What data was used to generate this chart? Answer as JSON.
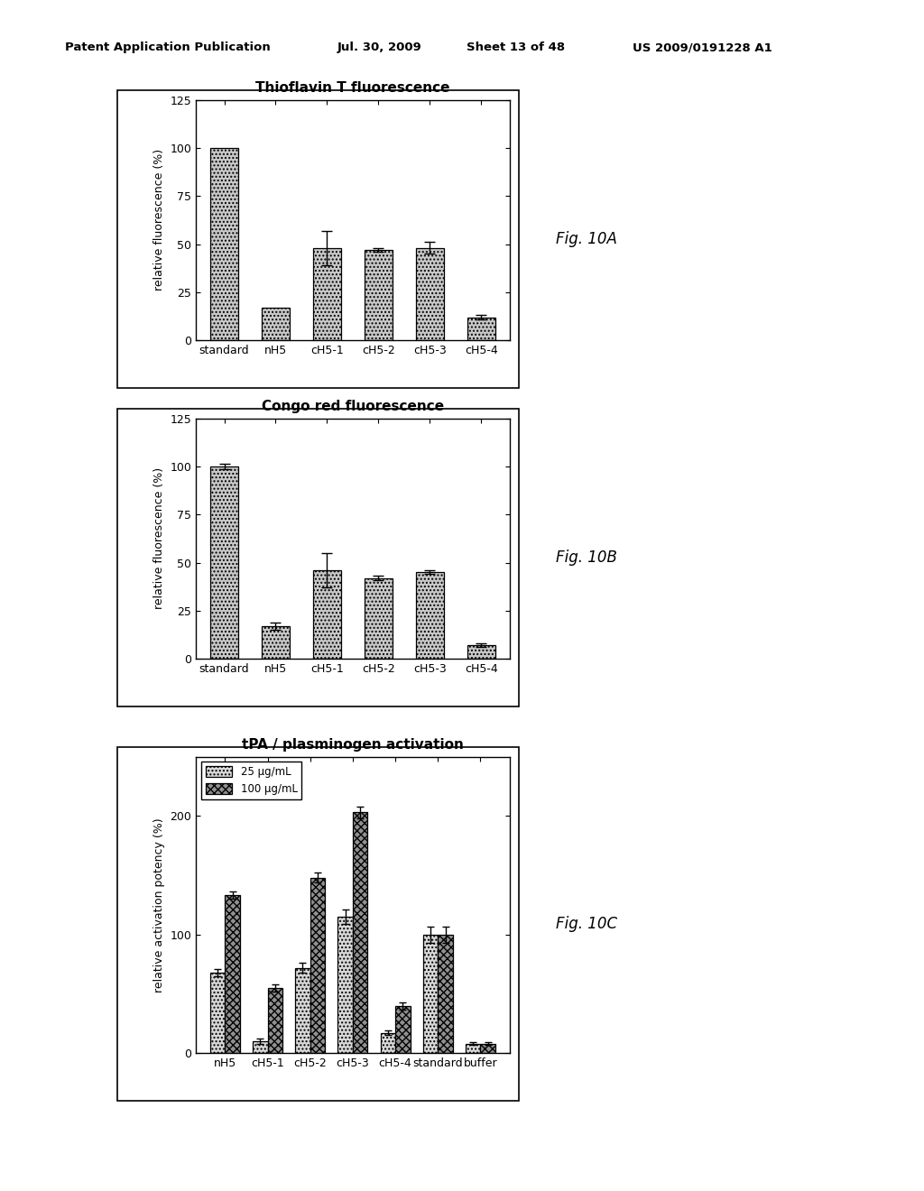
{
  "chartA": {
    "title": "Thioflavin T fluorescence",
    "categories": [
      "standard",
      "nH5",
      "cH5-1",
      "cH5-2",
      "cH5-3",
      "cH5-4"
    ],
    "values": [
      100,
      17,
      48,
      47,
      48,
      12
    ],
    "errors": [
      0,
      0,
      9,
      1,
      3,
      1
    ],
    "ylabel": "relative fluorescence (%)",
    "ylim": [
      0,
      125
    ],
    "yticks": [
      0,
      25,
      50,
      75,
      100,
      125
    ]
  },
  "chartB": {
    "title": "Congo red fluorescence",
    "categories": [
      "standard",
      "nH5",
      "cH5-1",
      "cH5-2",
      "cH5-3",
      "cH5-4"
    ],
    "values": [
      100,
      17,
      46,
      42,
      45,
      7
    ],
    "errors": [
      1.5,
      2,
      9,
      1,
      1,
      1
    ],
    "ylabel": "relative fluorescence (%)",
    "ylim": [
      0,
      125
    ],
    "yticks": [
      0,
      25,
      50,
      75,
      100,
      125
    ]
  },
  "chartC": {
    "title": "tPA / plasminogen activation",
    "categories": [
      "nH5",
      "cH5-1",
      "cH5-2",
      "cH5-3",
      "cH5-4",
      "standard",
      "buffer"
    ],
    "values_25": [
      68,
      10,
      72,
      115,
      17,
      100,
      8
    ],
    "values_100": [
      133,
      55,
      148,
      203,
      40,
      100,
      8
    ],
    "errors_25": [
      3,
      2,
      4,
      6,
      2,
      7,
      1
    ],
    "errors_100": [
      3,
      3,
      4,
      5,
      3,
      7,
      1
    ],
    "ylabel": "relative activation potency (%)",
    "ylim": [
      0,
      250
    ],
    "yticks": [
      0,
      100,
      200
    ],
    "legend_25": "25 μg/mL",
    "legend_100": "100 μg/mL"
  },
  "background_color": "#ffffff",
  "fig_labels": [
    "Fig. 10A",
    "Fig. 10B",
    "Fig. 10C"
  ]
}
